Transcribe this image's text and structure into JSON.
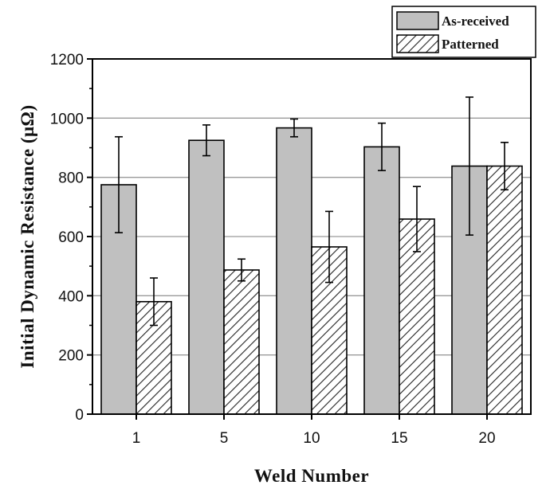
{
  "chart_data": {
    "type": "bar",
    "title": "",
    "xlabel": "Weld Number",
    "ylabel": "Initial Dynamic Resistance (μΩ)",
    "ylim": [
      0,
      1200
    ],
    "yticks": [
      0,
      200,
      400,
      600,
      800,
      1000,
      1200
    ],
    "categories": [
      "1",
      "5",
      "10",
      "15",
      "20"
    ],
    "grid": "horizontal",
    "legend": "top-right",
    "series": [
      {
        "name": "As-received",
        "fill": "#c0c0c0",
        "pattern": "solid",
        "values": [
          775,
          925,
          967,
          903,
          838
        ],
        "errors": [
          162,
          52,
          30,
          80,
          233
        ]
      },
      {
        "name": "Patterned",
        "fill": "#ffffff",
        "pattern": "hatched",
        "values": [
          380,
          487,
          565,
          659,
          838
        ],
        "errors": [
          80,
          37,
          120,
          110,
          80
        ]
      }
    ]
  }
}
